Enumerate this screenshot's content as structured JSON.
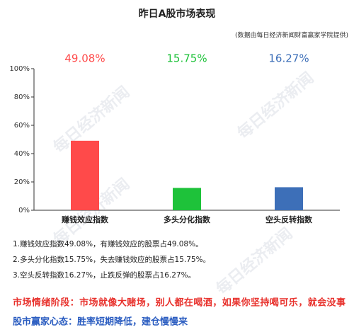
{
  "chart_data": {
    "type": "bar",
    "title": "昨日A股市场表现",
    "subtitle": "(数据由每日经济新闻财富赢家学院提供)",
    "watermark": "每日经济新闻",
    "categories": [
      "赚钱效应指数",
      "多头分化指数",
      "空头反转指数"
    ],
    "values": [
      49.08,
      15.75,
      16.27
    ],
    "value_labels": [
      "49.08%",
      "15.75%",
      "16.27%"
    ],
    "colors": [
      "#ff4a4a",
      "#1ec23a",
      "#3d6fb8"
    ],
    "ylim": [
      0,
      100
    ],
    "yticks": [
      {
        "value": 0,
        "label": "0%"
      },
      {
        "value": 20,
        "label": "20%"
      },
      {
        "value": 40,
        "label": "40%"
      },
      {
        "value": 60,
        "label": "60%"
      },
      {
        "value": 80,
        "label": "80%"
      },
      {
        "value": 100,
        "label": "100%"
      }
    ],
    "grid": false
  },
  "notes": [
    "1.赚钱效应指数49.08%，有赚钱效应的股票占49.08%。",
    "2.多头分化指数15.75%，失去赚钱效应的股票占15.75%。",
    "3.空头反转指数16.27%，止跌反弹的股票占16.27%。"
  ],
  "footer": [
    {
      "text": "市场情绪阶段：市场就像大赌场，别人都在喝酒，如果你坚持喝可乐，就会没事",
      "color": "#e8322d"
    },
    {
      "text": "股市赢家心态：胜率短期降低，建仓慢慢来",
      "color": "#2a5cc0"
    }
  ]
}
